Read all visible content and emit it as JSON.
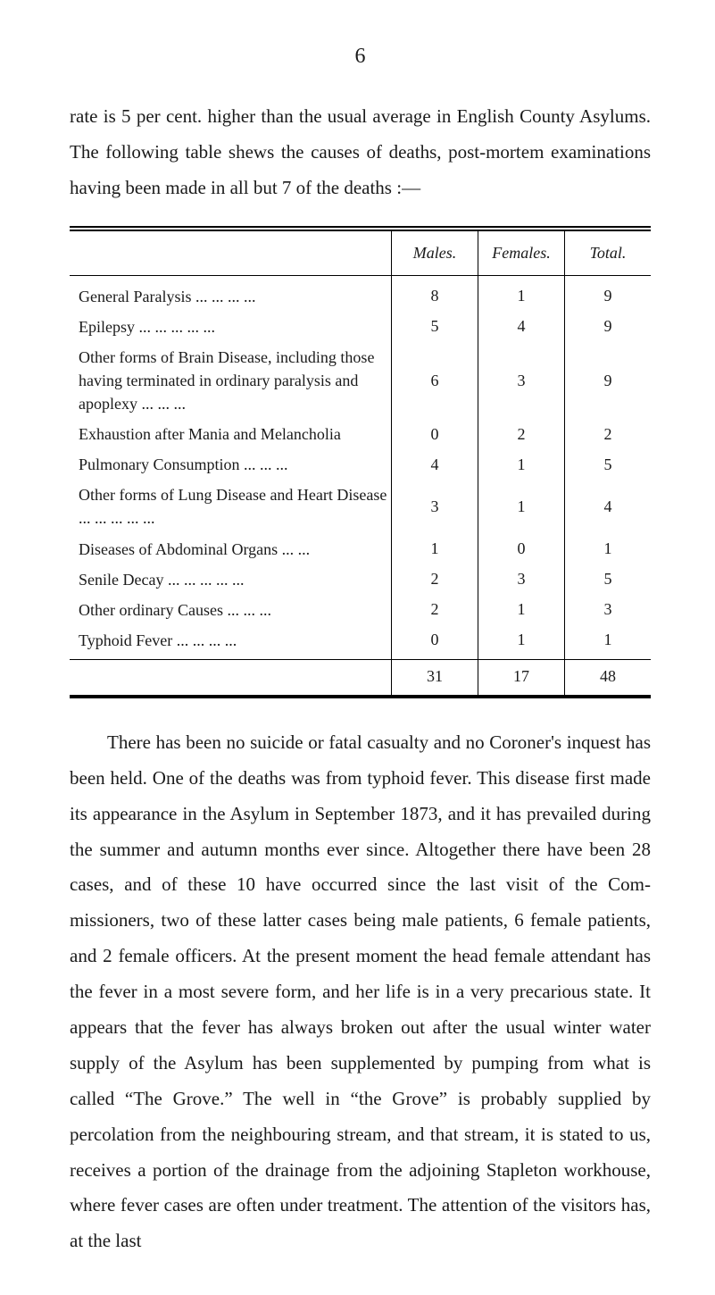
{
  "page_number": "6",
  "top_mark": "",
  "para1": "rate is 5 per cent. higher than the usual average in English County Asylums. The following table shews the causes of deaths, post-mortem examinations having been made in all but 7 of the deaths :—",
  "table": {
    "headers": {
      "males": "Males.",
      "females": "Females.",
      "total": "Total."
    },
    "rows": [
      {
        "label": "General Paralysis  ...   ...   ...   ...",
        "males": "8",
        "females": "1",
        "total": "9"
      },
      {
        "label": "Epilepsy   ...   ...   ...   ...   ...",
        "males": "5",
        "females": "4",
        "total": "9"
      },
      {
        "label": "Other forms of Brain Disease, including those having terminated in ordinary paralysis and apoplexy  ...   ...   ...",
        "males": "6",
        "females": "3",
        "total": "9"
      },
      {
        "label": "Exhaustion after Mania and Melancholia",
        "males": "0",
        "females": "2",
        "total": "2"
      },
      {
        "label": "Pulmonary Consumption  ...   ...   ...",
        "males": "4",
        "females": "1",
        "total": "5"
      },
      {
        "label": "Other forms of Lung Disease and Heart Disease   ...   ...   ...   ...   ...",
        "males": "3",
        "females": "1",
        "total": "4"
      },
      {
        "label": "Diseases of Abdominal Organs   ...   ...",
        "males": "1",
        "females": "0",
        "total": "1"
      },
      {
        "label": "Senile Decay ...   ...   ...   ...   ...",
        "males": "2",
        "females": "3",
        "total": "5"
      },
      {
        "label": "Other ordinary Causes   ...   ...   ...",
        "males": "2",
        "females": "1",
        "total": "3"
      },
      {
        "label": "Typhoid Fever   ...   ...   ...   ...",
        "males": "0",
        "females": "1",
        "total": "1"
      }
    ],
    "totals": {
      "males": "31",
      "females": "17",
      "total": "48"
    }
  },
  "para2a": "There has been no suicide or fatal casualty and no Coroner's inquest has been held. One of the deaths was from typhoid fever. This disease first made its appearance in the Asylum in September 1873, and it has prevailed during the summer and autumn months ever since. Altogether there have been 28 cases, and of these 10 have occurred since the last visit of the Com­missioners, two of these latter cases being male patients, 6 female patients, and 2 female officers. At the present moment the head female attendant has the fever in a most severe form, and her life is in a very precarious state. It appears that the fever has always broken out after the usual winter water supply of the Asylum has been supplemented by pumping from what is called “The Grove.” The well in “the Grove” is probably supplied by percolation from the neighbouring stream, and that stream, it is stated to us, receives a portion of the drainage from the adjoining Stapleton workhouse, where fever cases are often under treatment. The attention of the visitors has, at the last"
}
